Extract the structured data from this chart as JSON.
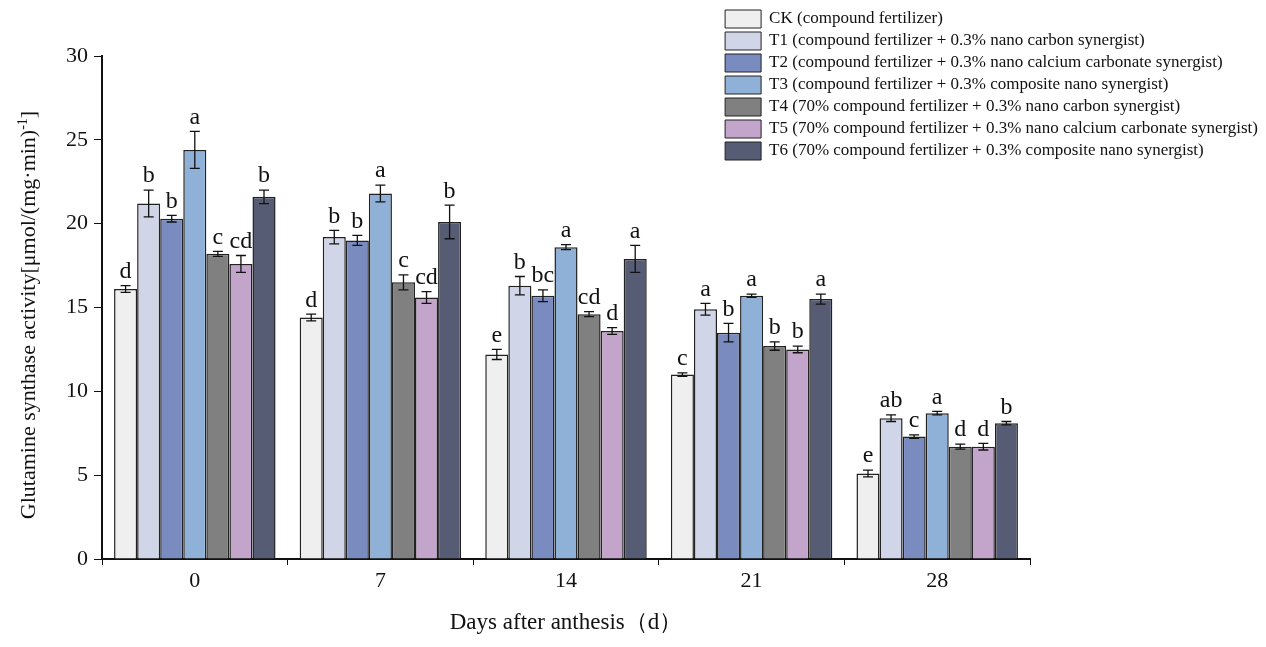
{
  "chart_data": {
    "type": "bar",
    "xlabel": "Days after anthesis（d）",
    "ylabel": "Glutamine synthase activity[μmol/(mg·min)$^{-1}$]",
    "categories": [
      "0",
      "7",
      "14",
      "21",
      "28"
    ],
    "ylim": [
      0,
      30
    ],
    "yticks": [
      0,
      5,
      10,
      15,
      20,
      25,
      30
    ],
    "grid": false,
    "legend": "top right",
    "series": [
      {
        "name": "CK (compound fertilizer)",
        "color": "#efefef",
        "values": [
          16.1,
          14.4,
          12.2,
          11.0,
          5.1
        ],
        "errors": [
          0.2,
          0.2,
          0.3,
          0.1,
          0.2
        ],
        "value_labels": [
          "d",
          "d",
          "e",
          "c",
          "e"
        ]
      },
      {
        "name": "T1 (compound fertilizer + 0.3% nano carbon synergist)",
        "color": "#d0d6e8",
        "values": [
          21.2,
          19.2,
          16.3,
          14.9,
          8.4
        ],
        "errors": [
          0.8,
          0.4,
          0.55,
          0.35,
          0.2
        ],
        "value_labels": [
          "b",
          "b",
          "b",
          "a",
          "ab"
        ]
      },
      {
        "name": "T2 (compound fertilizer + 0.3% nano calcium carbonate synergist)",
        "color": "#798bbf",
        "values": [
          20.3,
          19.0,
          15.7,
          13.5,
          7.3
        ],
        "errors": [
          0.2,
          0.3,
          0.35,
          0.55,
          0.1
        ],
        "value_labels": [
          "b",
          "b",
          "bc",
          "b",
          "c"
        ]
      },
      {
        "name": "T3 (compound fertilizer + 0.3% composite nano synergist)",
        "color": "#8fb1d8",
        "values": [
          24.4,
          21.8,
          18.6,
          15.7,
          8.7
        ],
        "errors": [
          1.1,
          0.5,
          0.15,
          0.1,
          0.1
        ],
        "value_labels": [
          "a",
          "a",
          "a",
          "a",
          "a"
        ]
      },
      {
        "name": "T4 (70% compound fertilizer + 0.3% nano carbon synergist)",
        "color": "#808080",
        "values": [
          18.2,
          16.5,
          14.6,
          12.7,
          6.7
        ],
        "errors": [
          0.15,
          0.45,
          0.15,
          0.25,
          0.15
        ],
        "value_labels": [
          "c",
          "c",
          "cd",
          "b",
          "d"
        ]
      },
      {
        "name": "T5 (70% compound fertilizer + 0.3% nano calcium carbonate synergist)",
        "color": "#c3a5cb",
        "values": [
          17.6,
          15.6,
          13.6,
          12.5,
          6.7
        ],
        "errors": [
          0.5,
          0.35,
          0.2,
          0.2,
          0.2
        ],
        "value_labels": [
          "cd",
          "cd",
          "d",
          "b",
          "d"
        ]
      },
      {
        "name": "T6 (70% compound fertilizer + 0.3% composite nano synergist)",
        "color": "#575c75",
        "values": [
          21.6,
          20.1,
          17.9,
          15.5,
          8.1
        ],
        "errors": [
          0.4,
          1.0,
          0.8,
          0.3,
          0.1
        ],
        "value_labels": [
          "b",
          "b",
          "a",
          "a",
          "b"
        ]
      }
    ]
  }
}
